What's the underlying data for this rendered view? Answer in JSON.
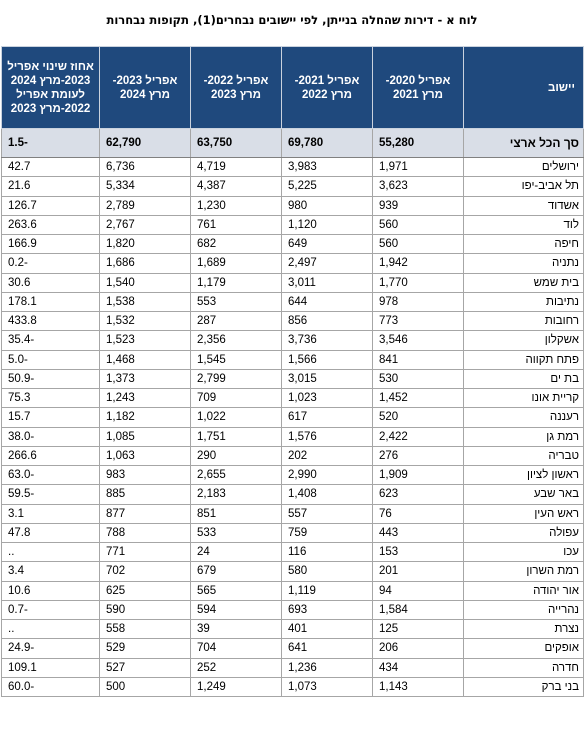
{
  "title": "לוח א - דירות שהחלה בנייתן, לפי יישובים נבחרים(1), תקופות נבחרות",
  "headers": {
    "town": "יישוב",
    "p2020": "אפריל 2020- מרץ 2021",
    "p2021": "אפריל 2021- מרץ 2022",
    "p2022": "אפריל 2022- מרץ 2023",
    "p2023": "אפריל 2023- מרץ 2024",
    "change": "אחוז שינוי אפריל 2023-מרץ 2024 לעומת אפריל 2022-מרץ 2023"
  },
  "total": {
    "town": "סך הכל ארצי",
    "p2020": "55,280",
    "p2021": "69,780",
    "p2022": "63,750",
    "p2023": "62,790",
    "change": "-1.5"
  },
  "rows": [
    {
      "town": "ירושלים",
      "p2020": "1,971",
      "p2021": "3,983",
      "p2022": "4,719",
      "p2023": "6,736",
      "change": "42.7"
    },
    {
      "town": "תל אביב-יפו",
      "p2020": "3,623",
      "p2021": "5,225",
      "p2022": "4,387",
      "p2023": "5,334",
      "change": "21.6"
    },
    {
      "town": "אשדוד",
      "p2020": "939",
      "p2021": "980",
      "p2022": "1,230",
      "p2023": "2,789",
      "change": "126.7"
    },
    {
      "town": "לוד",
      "p2020": "560",
      "p2021": "1,120",
      "p2022": "761",
      "p2023": "2,767",
      "change": "263.6"
    },
    {
      "town": "חיפה",
      "p2020": "560",
      "p2021": "649",
      "p2022": "682",
      "p2023": "1,820",
      "change": "166.9"
    },
    {
      "town": "נתניה",
      "p2020": "1,942",
      "p2021": "2,497",
      "p2022": "1,689",
      "p2023": "1,686",
      "change": "-0.2"
    },
    {
      "town": "בית שמש",
      "p2020": "1,770",
      "p2021": "3,011",
      "p2022": "1,179",
      "p2023": "1,540",
      "change": "30.6"
    },
    {
      "town": "נתיבות",
      "p2020": "978",
      "p2021": "644",
      "p2022": "553",
      "p2023": "1,538",
      "change": "178.1"
    },
    {
      "town": "רחובות",
      "p2020": "773",
      "p2021": "856",
      "p2022": "287",
      "p2023": "1,532",
      "change": "433.8"
    },
    {
      "town": "אשקלון",
      "p2020": "3,546",
      "p2021": "3,736",
      "p2022": "2,356",
      "p2023": "1,523",
      "change": "-35.4"
    },
    {
      "town": "פתח תקווה",
      "p2020": "841",
      "p2021": "1,566",
      "p2022": "1,545",
      "p2023": "1,468",
      "change": "-5.0"
    },
    {
      "town": "בת ים",
      "p2020": "530",
      "p2021": "3,015",
      "p2022": "2,799",
      "p2023": "1,373",
      "change": "-50.9"
    },
    {
      "town": "קריית אונו",
      "p2020": "1,452",
      "p2021": "1,023",
      "p2022": "709",
      "p2023": "1,243",
      "change": "75.3"
    },
    {
      "town": "רעננה",
      "p2020": "520",
      "p2021": "617",
      "p2022": "1,022",
      "p2023": "1,182",
      "change": "15.7"
    },
    {
      "town": "רמת גן",
      "p2020": "2,422",
      "p2021": "1,576",
      "p2022": "1,751",
      "p2023": "1,085",
      "change": "-38.0"
    },
    {
      "town": "טבריה",
      "p2020": "276",
      "p2021": "202",
      "p2022": "290",
      "p2023": "1,063",
      "change": "266.6"
    },
    {
      "town": "ראשון לציון",
      "p2020": "1,909",
      "p2021": "2,990",
      "p2022": "2,655",
      "p2023": "983",
      "change": "-63.0"
    },
    {
      "town": "באר שבע",
      "p2020": "623",
      "p2021": "1,408",
      "p2022": "2,183",
      "p2023": "885",
      "change": "-59.5"
    },
    {
      "town": "ראש העין",
      "p2020": "76",
      "p2021": "557",
      "p2022": "851",
      "p2023": "877",
      "change": "3.1"
    },
    {
      "town": "עפולה",
      "p2020": "443",
      "p2021": "759",
      "p2022": "533",
      "p2023": "788",
      "change": "47.8"
    },
    {
      "town": "עכו",
      "p2020": "153",
      "p2021": "116",
      "p2022": "24",
      "p2023": "771",
      "change": ".."
    },
    {
      "town": "רמת השרון",
      "p2020": "201",
      "p2021": "580",
      "p2022": "679",
      "p2023": "702",
      "change": "3.4"
    },
    {
      "town": "אור יהודה",
      "p2020": "94",
      "p2021": "1,119",
      "p2022": "565",
      "p2023": "625",
      "change": "10.6"
    },
    {
      "town": "נהרייה",
      "p2020": "1,584",
      "p2021": "693",
      "p2022": "594",
      "p2023": "590",
      "change": "-0.7"
    },
    {
      "town": "נצרת",
      "p2020": "125",
      "p2021": "401",
      "p2022": "39",
      "p2023": "558",
      "change": ".."
    },
    {
      "town": "אופקים",
      "p2020": "206",
      "p2021": "641",
      "p2022": "704",
      "p2023": "529",
      "change": "-24.9"
    },
    {
      "town": "חדרה",
      "p2020": "434",
      "p2021": "1,236",
      "p2022": "252",
      "p2023": "527",
      "change": "109.1"
    },
    {
      "town": "בני ברק",
      "p2020": "1,143",
      "p2021": "1,073",
      "p2022": "1,249",
      "p2023": "500",
      "change": "-60.0"
    }
  ]
}
